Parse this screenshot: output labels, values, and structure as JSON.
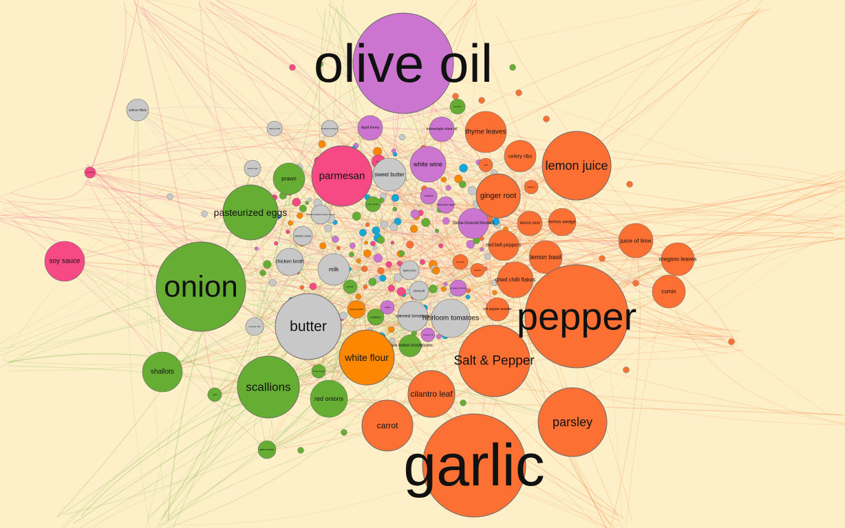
{
  "graph": {
    "colors": {
      "background": "#fdefc8",
      "orange": "#fd7034",
      "green": "#66ad34",
      "pink": "#f74a85",
      "violet": "#cc75d0",
      "gray": "#c8c8c8",
      "dark-orange": "#fd8800",
      "cyan": "#14a8d8"
    },
    "nodes": [
      {
        "label": "olive oil",
        "group": "violet"
      },
      {
        "label": "garlic",
        "group": "orange"
      },
      {
        "label": "pepper",
        "group": "orange"
      },
      {
        "label": "onion",
        "group": "green"
      },
      {
        "label": "butter",
        "group": "gray"
      },
      {
        "label": "scallions",
        "group": "green"
      },
      {
        "label": "Salt & Pepper",
        "group": "orange"
      },
      {
        "label": "lemon juice",
        "group": "orange"
      },
      {
        "label": "parsley",
        "group": "orange"
      },
      {
        "label": "parmesan",
        "group": "pink"
      },
      {
        "label": "white flour",
        "group": "dark-orange"
      },
      {
        "label": "pasteurized eggs",
        "group": "green"
      },
      {
        "label": "carrot",
        "group": "orange"
      },
      {
        "label": "cilantro leaf",
        "group": "orange"
      },
      {
        "label": "heirloom tomatoes",
        "group": "gray"
      },
      {
        "label": "ginger root",
        "group": "orange"
      },
      {
        "label": "thyme leaves",
        "group": "orange"
      },
      {
        "label": "soy sauce",
        "group": "pink"
      },
      {
        "label": "shallots",
        "group": "green"
      },
      {
        "label": "red onions",
        "group": "green"
      },
      {
        "label": "lemon basil",
        "group": "orange"
      },
      {
        "label": "white wine",
        "group": "violet"
      },
      {
        "label": "sweet butter",
        "group": "gray"
      },
      {
        "label": "juice of lime",
        "group": "orange"
      },
      {
        "label": "oregano leaves",
        "group": "orange"
      },
      {
        "label": "dried chilli flakes",
        "group": "orange"
      },
      {
        "label": "milk",
        "group": "gray"
      },
      {
        "label": "chicken broth",
        "group": "gray"
      },
      {
        "label": "prawn",
        "group": "green"
      },
      {
        "label": "celery ribs",
        "group": "orange"
      },
      {
        "label": "red bell peppers",
        "group": "orange"
      },
      {
        "label": "lemon wedge",
        "group": "orange"
      },
      {
        "label": "canned tomatoes",
        "group": "gray"
      },
      {
        "label": "cumin",
        "group": "orange"
      },
      {
        "label": "lemon zest",
        "group": "orange"
      },
      {
        "label": "white button mushrooms",
        "group": "green"
      },
      {
        "label": "red pepper powder",
        "group": "orange"
      },
      {
        "label": "extravirgin olive oil",
        "group": "violet"
      },
      {
        "label": "Stone-Ground Mustard",
        "group": "violet"
      },
      {
        "label": "liquid honey",
        "group": "violet"
      },
      {
        "label": "salmon fillets",
        "group": "gray"
      },
      {
        "label": "garlic powder",
        "group": "green"
      },
      {
        "label": "broccoli",
        "group": "gray"
      },
      {
        "label": "whole lime kasuri",
        "group": "violet"
      },
      {
        "label": "cornflour",
        "group": "violet"
      },
      {
        "label": "chicken stock",
        "group": "gray"
      },
      {
        "label": "boneless skinless chicken breasts",
        "group": "gray"
      },
      {
        "label": "bread crumbs",
        "group": "dark-orange"
      },
      {
        "label": "potatoes",
        "group": "green"
      },
      {
        "label": "kosher salt",
        "group": "gray"
      },
      {
        "label": "coconut milk",
        "group": "gray"
      },
      {
        "label": "apple juice",
        "group": "gray"
      },
      {
        "label": "chopped tomatoes",
        "group": "gray"
      },
      {
        "label": "avocado",
        "group": "green"
      },
      {
        "label": "brown sugar",
        "group": "green"
      },
      {
        "label": "baking soda",
        "group": "gray"
      },
      {
        "label": "pineapple chunks",
        "group": "violet"
      },
      {
        "label": "chilli",
        "group": "green"
      },
      {
        "label": "mozzarella",
        "group": "pink"
      },
      {
        "label": "sesame oil",
        "group": "violet"
      },
      {
        "label": "vanilla",
        "group": "violet"
      },
      {
        "label": "coriander",
        "group": "orange"
      },
      {
        "label": "paprika",
        "group": "orange"
      },
      {
        "label": "green onions",
        "group": "green"
      },
      {
        "label": "basil",
        "group": "orange"
      },
      {
        "label": "jalapeno",
        "group": "orange"
      },
      {
        "label": "ricotta",
        "group": "pink"
      },
      {
        "label": "spinach",
        "group": "green"
      }
    ]
  }
}
